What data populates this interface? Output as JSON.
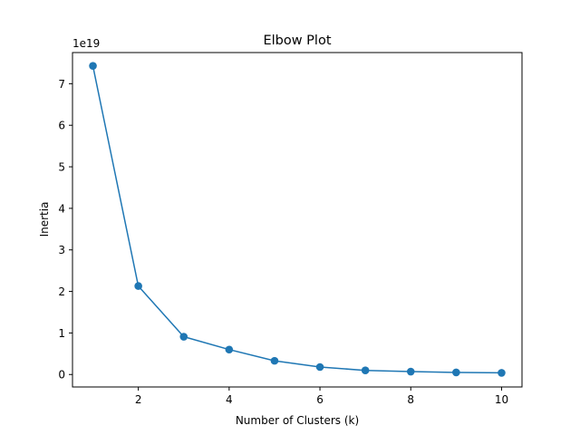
{
  "chart_data": {
    "type": "line",
    "title": "Elbow Plot",
    "xlabel": "Number of Clusters (k)",
    "ylabel": "Inertia",
    "y_offset_label": "1e19",
    "xlim": [
      0.55,
      10.45
    ],
    "ylim": [
      -0.3,
      7.75
    ],
    "x_ticks": [
      2,
      4,
      6,
      8,
      10
    ],
    "x_tick_labels": [
      "2",
      "4",
      "6",
      "8",
      "10"
    ],
    "y_ticks": [
      0,
      1,
      2,
      3,
      4,
      5,
      6,
      7
    ],
    "y_tick_labels": [
      "0",
      "1",
      "2",
      "3",
      "4",
      "5",
      "6",
      "7"
    ],
    "grid": false,
    "legend": "none",
    "series": [
      {
        "color": "#1f77b4",
        "marker": "circle",
        "x": [
          1,
          2,
          3,
          4,
          5,
          6,
          7,
          8,
          9,
          10
        ],
        "y": [
          7.43,
          2.13,
          0.91,
          0.6,
          0.33,
          0.18,
          0.1,
          0.07,
          0.05,
          0.04
        ]
      }
    ]
  }
}
